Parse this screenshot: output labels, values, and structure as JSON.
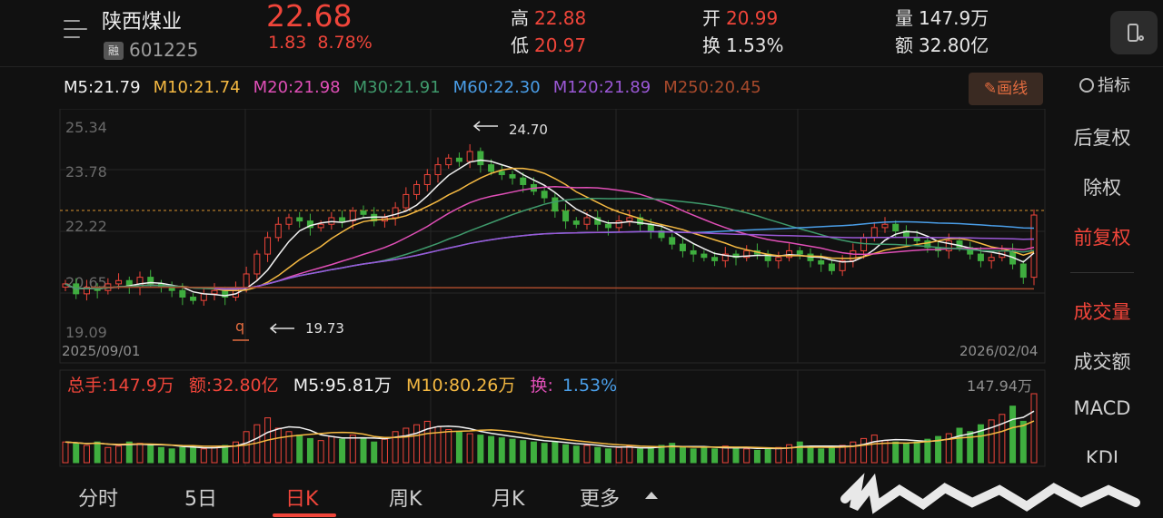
{
  "header": {
    "stock_name": "陕西煤业",
    "rong_badge": "融",
    "stock_code": "601225",
    "price": "22.68",
    "change": "1.83",
    "change_pct": "8.78%",
    "high_label": "高",
    "high_value": "22.88",
    "low_label": "低",
    "low_value": "20.97",
    "open_label": "开",
    "open_value": "20.99",
    "turnover_label": "换",
    "turnover_value": "1.53%",
    "volume_label": "量",
    "volume_value": "147.9万",
    "amount_label": "额",
    "amount_value": "32.80亿"
  },
  "ma_row": [
    {
      "text": "M5:21.79",
      "color": "#f2f2f2"
    },
    {
      "text": "M10:21.74",
      "color": "#f5b942"
    },
    {
      "text": "M20:21.98",
      "color": "#e04fb7"
    },
    {
      "text": "M30:21.91",
      "color": "#3f9a6c"
    },
    {
      "text": "M60:22.30",
      "color": "#4a9ee8"
    },
    {
      "text": "M120:21.89",
      "color": "#9b58d6"
    },
    {
      "text": "M250:20.45",
      "color": "#a84a2c"
    }
  ],
  "toolbar": {
    "draw_line": "画线",
    "indicator": "指标"
  },
  "side_panel": {
    "items": [
      "后复权",
      "除权",
      "前复权",
      "成交量",
      "成交额",
      "MACD",
      "KDJ"
    ],
    "active": [
      "前复权",
      "成交量"
    ]
  },
  "chart": {
    "y_ticks": [
      "25.34",
      "23.78",
      "22.22",
      "20.65",
      "19.09"
    ],
    "date_start": "2025/09/01",
    "date_end": "2026/02/04",
    "high_annotation": "24.70",
    "low_annotation": "19.73",
    "marker_glyph": "q"
  },
  "volume": {
    "total_label": "总手:147.9万",
    "amount_label": "额:32.80亿",
    "m5_label": "M5:95.81万",
    "m10_label": "M10:80.26万",
    "turnover_prefix": "换:",
    "turnover_value": "1.53%",
    "max_label": "147.94万"
  },
  "tabs": [
    "分时",
    "5日",
    "日K",
    "周K",
    "月K",
    "更多"
  ],
  "active_tab": "日K",
  "colors": {
    "up": "#f0453a",
    "down": "#3fae3f",
    "ma5": "#f2f2f2",
    "ma10": "#f5b942",
    "ma20": "#e04fb7",
    "ma30": "#3f9a6c",
    "ma60": "#4a9ee8",
    "ma120": "#9b58d6",
    "ma250": "#a84a2c"
  },
  "chart_data": {
    "type": "candlestick",
    "y_range": [
      19.09,
      25.34
    ],
    "last_close": 22.68,
    "period_high": 24.7,
    "period_low": 19.73,
    "ma_values": {
      "M5": 21.79,
      "M10": 21.74,
      "M20": 21.98,
      "M30": 21.91,
      "M60": 22.3,
      "M120": 21.89,
      "M250": 20.45
    },
    "close_path": [
      20.6,
      20.3,
      20.5,
      20.4,
      20.6,
      20.7,
      20.5,
      20.8,
      20.6,
      20.5,
      20.4,
      20.2,
      20.1,
      20.3,
      20.4,
      20.2,
      20.5,
      20.9,
      21.5,
      22.0,
      22.4,
      22.6,
      22.5,
      22.3,
      22.4,
      22.6,
      22.5,
      22.8,
      22.7,
      22.5,
      22.6,
      22.9,
      23.3,
      23.6,
      23.9,
      24.2,
      24.4,
      24.3,
      24.6,
      24.2,
      24.0,
      23.9,
      23.8,
      23.6,
      23.4,
      23.2,
      22.8,
      22.5,
      22.4,
      22.6,
      22.4,
      22.3,
      22.5,
      22.6,
      22.4,
      22.2,
      22.0,
      21.8,
      21.6,
      21.5,
      21.4,
      21.3,
      21.5,
      21.4,
      21.6,
      21.5,
      21.3,
      21.4,
      21.6,
      21.5,
      21.3,
      21.2,
      21.0,
      21.3,
      21.6,
      22.0,
      22.3,
      22.4,
      22.2,
      22.0,
      21.9,
      21.7,
      21.6,
      21.9,
      21.7,
      21.5,
      21.3,
      21.4,
      21.6,
      21.2,
      20.8,
      22.68
    ],
    "volume_ratio": [
      0.3,
      0.28,
      0.25,
      0.3,
      0.22,
      0.24,
      0.3,
      0.28,
      0.26,
      0.22,
      0.2,
      0.22,
      0.24,
      0.2,
      0.22,
      0.25,
      0.3,
      0.45,
      0.55,
      0.65,
      0.5,
      0.45,
      0.4,
      0.35,
      0.32,
      0.38,
      0.34,
      0.4,
      0.36,
      0.3,
      0.34,
      0.45,
      0.5,
      0.55,
      0.6,
      0.52,
      0.48,
      0.45,
      0.42,
      0.4,
      0.38,
      0.36,
      0.34,
      0.32,
      0.3,
      0.28,
      0.3,
      0.26,
      0.24,
      0.25,
      0.22,
      0.2,
      0.22,
      0.24,
      0.2,
      0.22,
      0.25,
      0.28,
      0.22,
      0.2,
      0.22,
      0.2,
      0.24,
      0.22,
      0.2,
      0.18,
      0.2,
      0.22,
      0.26,
      0.3,
      0.22,
      0.2,
      0.22,
      0.25,
      0.3,
      0.35,
      0.4,
      0.32,
      0.3,
      0.28,
      0.3,
      0.34,
      0.38,
      0.42,
      0.5,
      0.45,
      0.55,
      0.62,
      0.7,
      0.82,
      0.6,
      1.0
    ]
  }
}
